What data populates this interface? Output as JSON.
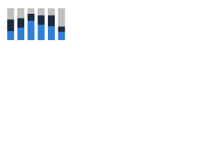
{
  "chart_data": {
    "type": "stacked_bar",
    "categories": [
      null,
      null,
      null,
      null,
      null,
      null
    ],
    "series": [
      {
        "color": "#2f7ed8",
        "values": [
          28,
          39,
          61,
          48,
          43,
          26
        ]
      },
      {
        "color": "#1c2b42",
        "values": [
          37,
          30,
          22,
          30,
          35,
          17
        ]
      },
      {
        "color": "#bfbfbf",
        "values": [
          35,
          31,
          17,
          22,
          22,
          57
        ]
      }
    ],
    "ylim": [
      0,
      100
    ]
  }
}
